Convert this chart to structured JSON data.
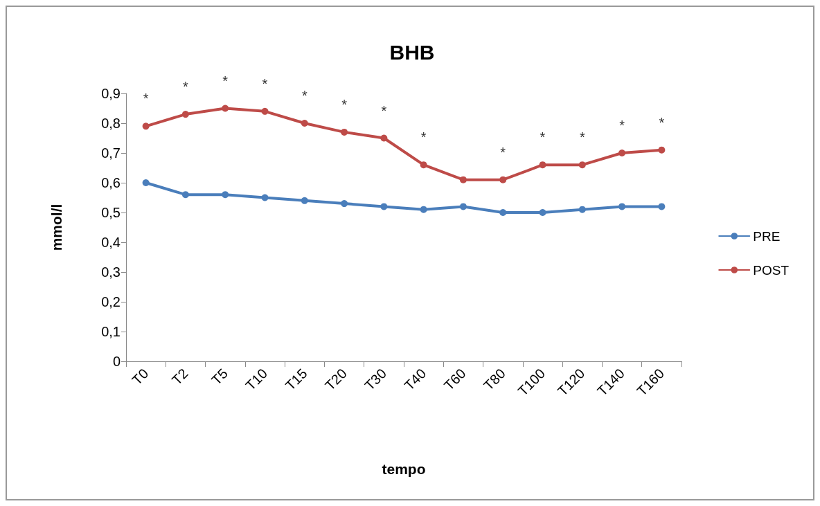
{
  "chart_data": {
    "type": "line",
    "title": "BHB",
    "xlabel": "tempo",
    "ylabel": "mmol/l",
    "categories": [
      "T0",
      "T2",
      "T5",
      "T10",
      "T15",
      "T20",
      "T30",
      "T40",
      "T60",
      "T80",
      "T100",
      "T120",
      "T140",
      "T160"
    ],
    "series": [
      {
        "name": "PRE",
        "color": "#4a7ebb",
        "values": [
          0.6,
          0.56,
          0.56,
          0.55,
          0.54,
          0.53,
          0.52,
          0.51,
          0.52,
          0.5,
          0.5,
          0.51,
          0.52,
          0.52
        ]
      },
      {
        "name": "POST",
        "color": "#be4b48",
        "values": [
          0.79,
          0.83,
          0.85,
          0.84,
          0.8,
          0.77,
          0.75,
          0.66,
          0.61,
          0.61,
          0.66,
          0.66,
          0.7,
          0.71
        ]
      }
    ],
    "ylim": [
      0,
      0.9
    ],
    "yticks": [
      {
        "value": 0,
        "label": "0"
      },
      {
        "value": 0.1,
        "label": "0,1"
      },
      {
        "value": 0.2,
        "label": "0,2"
      },
      {
        "value": 0.3,
        "label": "0,3"
      },
      {
        "value": 0.4,
        "label": "0,4"
      },
      {
        "value": 0.5,
        "label": "0,5"
      },
      {
        "value": 0.6,
        "label": "0,6"
      },
      {
        "value": 0.7,
        "label": "0,7"
      },
      {
        "value": 0.8,
        "label": "0,8"
      },
      {
        "value": 0.9,
        "label": "0,9"
      }
    ],
    "annotations": [
      "*",
      "*",
      "*",
      "*",
      "*",
      "*",
      "*",
      "*",
      "*",
      "*",
      "*",
      "*",
      "*"
    ],
    "grid": false,
    "legend": "right",
    "marker": "circle",
    "line_style": "solid"
  }
}
